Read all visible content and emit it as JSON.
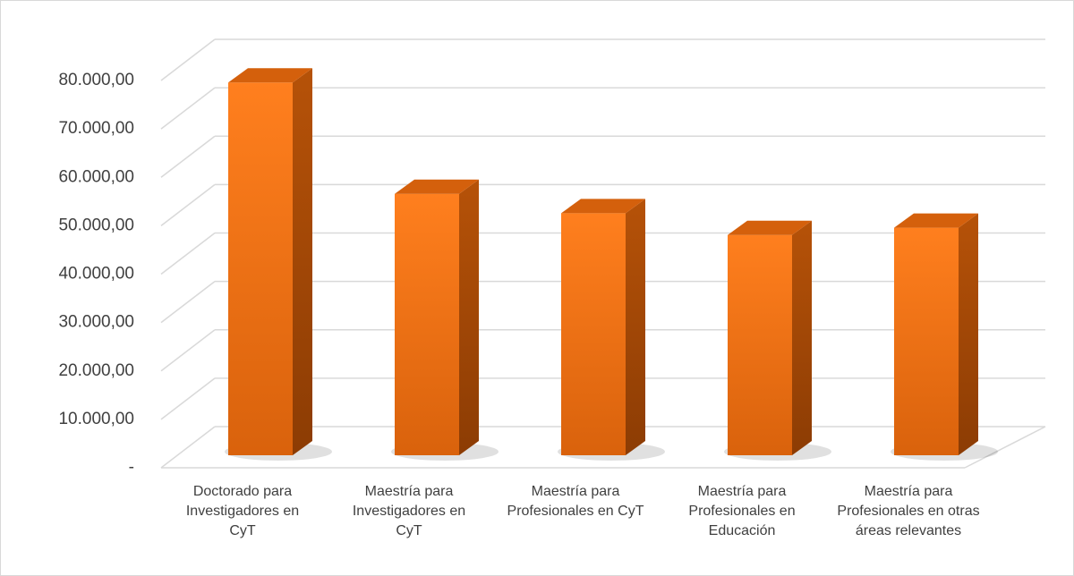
{
  "chart_data": {
    "type": "bar3d",
    "categories": [
      "Doctorado para Investigadores en CyT",
      "Maestría para Investigadores en CyT",
      "Maestría para Profesionales en CyT",
      "Maestría para Profesionales en Educación",
      "Maestría para Profesionales en otras áreas relevantes"
    ],
    "values": [
      77000,
      54000,
      50000,
      45500,
      47000
    ],
    "color": "#f26e12",
    "ylim": [
      0,
      80000
    ],
    "yticks": [
      {
        "value": 0,
        "label": "-"
      },
      {
        "value": 10000,
        "label": "10.000,00"
      },
      {
        "value": 20000,
        "label": "20.000,00"
      },
      {
        "value": 30000,
        "label": "30.000,00"
      },
      {
        "value": 40000,
        "label": "40.000,00"
      },
      {
        "value": 50000,
        "label": "50.000,00"
      },
      {
        "value": 60000,
        "label": "60.000,00"
      },
      {
        "value": 70000,
        "label": "70.000,00"
      },
      {
        "value": 80000,
        "label": "80.000,00"
      }
    ],
    "grid": true
  }
}
